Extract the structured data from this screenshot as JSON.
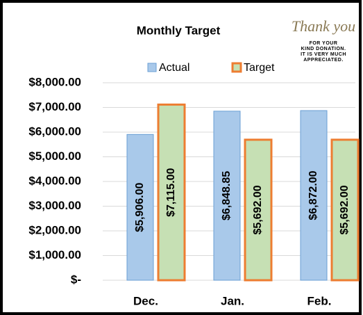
{
  "chart_data": {
    "type": "bar",
    "title": "Monthly Target",
    "categories": [
      "Dec.",
      "Jan.",
      "Feb."
    ],
    "series": [
      {
        "name": "Actual",
        "color": "#a9c9ea",
        "edgecolor": "#6a9fd4",
        "values": [
          5906,
          6848.85,
          6872
        ],
        "value_labels": [
          "$5,906.00",
          "$6,848.85",
          "$6,872.00"
        ]
      },
      {
        "name": "Target",
        "color": "#c6e0b4",
        "edgecolor": "#ed7d31",
        "values": [
          7115,
          5692,
          5692
        ],
        "value_labels": [
          "$7,115.00",
          "$5,692.00",
          "$5,692.00"
        ]
      }
    ],
    "ylim": [
      0,
      8000
    ],
    "yticks": [
      {
        "value": 0,
        "label": "$-"
      },
      {
        "value": 1000,
        "label": "$1,000.00"
      },
      {
        "value": 2000,
        "label": "$2,000.00"
      },
      {
        "value": 3000,
        "label": "$3,000.00"
      },
      {
        "value": 4000,
        "label": "$4,000.00"
      },
      {
        "value": 5000,
        "label": "$5,000.00"
      },
      {
        "value": 6000,
        "label": "$6,000.00"
      },
      {
        "value": 7000,
        "label": "$7,000.00"
      },
      {
        "value": 8000,
        "label": "$8,000.00"
      }
    ],
    "grid": true,
    "legend": "top",
    "stamp": {
      "title": "Thank you",
      "lines": [
        "FOR YOUR",
        "KIND DONATION.",
        "IT IS VERY MUCH",
        "APPRECIATED."
      ]
    }
  }
}
